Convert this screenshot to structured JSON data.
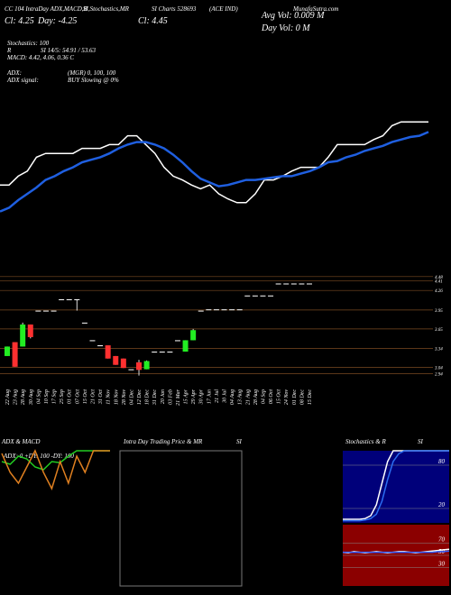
{
  "header": {
    "lines": [
      "CC 104 IntraDay ADX,MACD,B",
      "SI,Stochastics,MR",
      "SI Charts 528693",
      "(ACE IND)",
      "MunafaSutra.com"
    ],
    "close": "Cl: 4.25",
    "day": "Day: -4.25",
    "close2": "Cl: 4.45",
    "avg_vol": "Avg Vol: 0.009 M",
    "day_vol": "Day Vol: 0  M",
    "stoch": "Stochastics: 100",
    "r": "R",
    "rsi": "SI 14/5: 54.91 / 53.63",
    "macd": "MACD: 4.42, 4.06, 0.36  C",
    "adx": "ADX:",
    "mgr": "(MGR) 0, 100, 100",
    "adx_signal": "ADX  signal:",
    "buy": "BUY Slowing @ 0%"
  },
  "chart_data": [
    {
      "type": "line",
      "ylim": [
        0,
        100
      ],
      "series": [
        {
          "color": "#ffffff",
          "values": [
            32,
            32,
            39,
            43,
            54,
            57,
            57,
            57,
            57,
            61,
            61,
            61,
            64,
            64,
            71,
            71,
            64,
            57,
            46,
            39,
            36,
            32,
            29,
            32,
            25,
            21,
            18,
            18,
            25,
            36,
            36,
            39,
            43,
            46,
            46,
            46,
            54,
            64,
            64,
            64,
            64,
            68,
            71,
            79,
            82,
            82,
            82,
            82
          ]
        },
        {
          "color": "#1f5fe0",
          "values": [
            11,
            14,
            20,
            25,
            30,
            36,
            39,
            43,
            46,
            50,
            52,
            54,
            57,
            61,
            64,
            66,
            66,
            64,
            61,
            56,
            50,
            43,
            37,
            34,
            31,
            32,
            34,
            36,
            36,
            37,
            38,
            39,
            39,
            41,
            43,
            46,
            50,
            51,
            54,
            56,
            59,
            61,
            63,
            66,
            68,
            70,
            71,
            74
          ]
        }
      ]
    },
    {
      "type": "candlestick",
      "ylim": [
        2.79,
        4.72
      ],
      "grid_color": "#7a4a22",
      "yticks": [
        4.48,
        4.41,
        4.26,
        3.95,
        3.65,
        3.34,
        3.04,
        2.94
      ],
      "categories": [
        "22 Aug",
        "23 Aug",
        "28 Aug",
        "30 Aug",
        "04 Sep",
        "10 Sep",
        "17 Sep",
        "25 Sep",
        "01 Oct",
        "07 Oct",
        "15 Oct",
        "21 Oct",
        "31 Oct",
        "11 Nov",
        "18 Nov",
        "28 Nov",
        "04 Dec",
        "12 Dec",
        "18 Dec",
        "31 Dec",
        "20 Jan",
        "03 Feb",
        "21 Mar",
        "15 Apr",
        "29 Apr",
        "30 Apr",
        "17 Jun",
        "21 Jul",
        "30 Jul",
        "04 Aug",
        "13 Aug",
        "21 Aug",
        "28 Aug",
        "04 Sep",
        "06 Oct",
        "15 Oct",
        "24 Nov",
        "01 Dec",
        "08 Dec",
        "15 Dec"
      ],
      "open": [
        3.22,
        3.44,
        3.37,
        3.72,
        3.94,
        3.94,
        3.94,
        4.12,
        4.12,
        4.12,
        3.75,
        3.47,
        3.39,
        3.39,
        3.22,
        3.18,
        3.01,
        3.12,
        3.01,
        3.29,
        3.29,
        3.29,
        3.47,
        3.29,
        3.47,
        3.94,
        3.96,
        3.96,
        3.96,
        3.96,
        3.96,
        4.18,
        4.18,
        4.18,
        4.18,
        4.37,
        4.37,
        4.37,
        4.37,
        4.37
      ],
      "high": [
        3.37,
        3.44,
        3.75,
        3.72,
        3.94,
        3.94,
        3.94,
        4.12,
        4.12,
        4.12,
        3.75,
        3.47,
        3.39,
        3.39,
        3.22,
        3.18,
        3.01,
        3.16,
        3.15,
        3.29,
        3.29,
        3.29,
        3.47,
        3.47,
        3.65,
        3.94,
        3.96,
        3.96,
        3.96,
        3.96,
        3.96,
        4.18,
        4.18,
        4.18,
        4.18,
        4.37,
        4.37,
        4.37,
        4.37,
        4.37
      ],
      "low": [
        3.22,
        3.05,
        3.37,
        3.5,
        3.94,
        3.94,
        3.94,
        4.12,
        4.12,
        3.94,
        3.75,
        3.47,
        3.39,
        3.18,
        3.08,
        3.03,
        3.01,
        2.91,
        3.01,
        3.29,
        3.29,
        3.29,
        3.47,
        3.29,
        3.47,
        3.94,
        3.96,
        3.96,
        3.96,
        3.96,
        3.96,
        4.18,
        4.18,
        4.18,
        4.18,
        4.37,
        4.37,
        4.37,
        4.37,
        4.37
      ],
      "close": [
        3.37,
        3.05,
        3.72,
        3.52,
        3.94,
        3.94,
        3.94,
        4.12,
        4.12,
        4.12,
        3.75,
        3.47,
        3.39,
        3.18,
        3.08,
        3.03,
        3.01,
        3.0,
        3.14,
        3.29,
        3.29,
        3.29,
        3.47,
        3.47,
        3.63,
        3.94,
        3.96,
        3.96,
        3.96,
        3.96,
        3.96,
        4.18,
        4.18,
        4.18,
        4.18,
        4.37,
        4.37,
        4.37,
        4.37,
        4.37
      ]
    },
    {
      "type": "line",
      "title": "ADX  & MACD",
      "annotation": "ADX: 0  +DY: 100  -DY: 100",
      "ylim": [
        0,
        100
      ],
      "series": [
        {
          "color": "#22cc22",
          "values": [
            80,
            75,
            90,
            85,
            70,
            65,
            80,
            78,
            90,
            100,
            100,
            100,
            100,
            100
          ]
        },
        {
          "color": "#e08020",
          "values": [
            95,
            60,
            40,
            70,
            100,
            60,
            30,
            80,
            40,
            90,
            60,
            100,
            100,
            100
          ]
        }
      ]
    },
    {
      "type": "line",
      "title": "Intra Day Trading Price  & MR",
      "title2": "SI",
      "series": []
    },
    {
      "type": "line",
      "title": "Stochastics & R",
      "title2": "SI",
      "ylim": [
        0,
        100
      ],
      "yticks": [
        20,
        80
      ],
      "background": "#00007a",
      "series": [
        {
          "color": "#ffffff",
          "values": [
            5,
            5,
            5,
            5,
            6,
            10,
            25,
            55,
            85,
            100,
            100,
            100,
            100,
            100,
            100,
            100,
            100,
            100,
            100,
            100
          ]
        },
        {
          "color": "#2a6cf0",
          "values": [
            3,
            3,
            3,
            3,
            4,
            6,
            12,
            30,
            60,
            85,
            96,
            100,
            100,
            100,
            100,
            100,
            100,
            100,
            100,
            100
          ]
        }
      ]
    },
    {
      "type": "line",
      "ylim": [
        0,
        100
      ],
      "yticks": [
        30,
        50,
        70
      ],
      "background": "#8b0000",
      "series": [
        {
          "color": "#ffffff",
          "values": [
            55,
            54,
            56,
            55,
            54,
            55,
            56,
            55,
            54,
            55,
            56,
            56,
            55,
            54,
            55,
            56,
            57,
            58,
            59,
            60
          ]
        },
        {
          "color": "#3060ff",
          "values": [
            55,
            55,
            55,
            55,
            55,
            55,
            55,
            55,
            55,
            55,
            55,
            55,
            55,
            55,
            55,
            55,
            55,
            56,
            56,
            57
          ]
        }
      ]
    }
  ]
}
